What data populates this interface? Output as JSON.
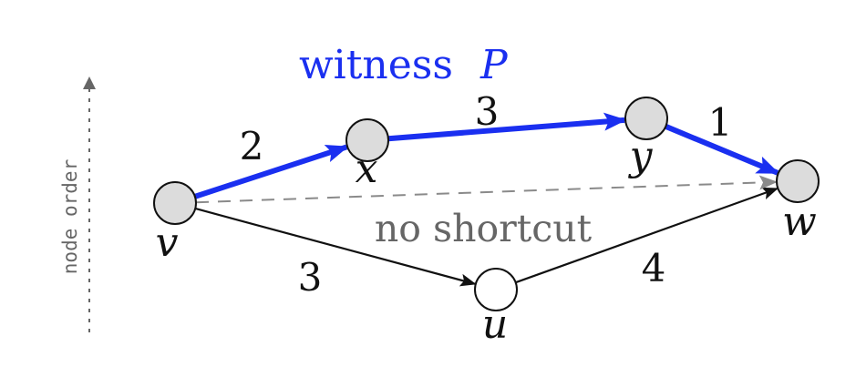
{
  "title": {
    "prefix": "witness",
    "symbol": "P"
  },
  "axis": {
    "label": "node order"
  },
  "annotation": {
    "no_shortcut": "no shortcut"
  },
  "nodes": [
    {
      "id": "v",
      "label": "v",
      "fill": "#dcdcdc"
    },
    {
      "id": "x",
      "label": "x",
      "fill": "#dcdcdc"
    },
    {
      "id": "y",
      "label": "y",
      "fill": "#dcdcdc"
    },
    {
      "id": "w",
      "label": "w",
      "fill": "#dcdcdc"
    },
    {
      "id": "u",
      "label": "u",
      "fill": "#ffffff"
    }
  ],
  "edges": [
    {
      "from": "v",
      "to": "x",
      "weight": "2",
      "style": "witness"
    },
    {
      "from": "x",
      "to": "y",
      "weight": "3",
      "style": "witness"
    },
    {
      "from": "y",
      "to": "w",
      "weight": "1",
      "style": "witness"
    },
    {
      "from": "v",
      "to": "u",
      "weight": "3",
      "style": "plain"
    },
    {
      "from": "u",
      "to": "w",
      "weight": "4",
      "style": "plain"
    },
    {
      "from": "v",
      "to": "w",
      "weight": "",
      "style": "dashed"
    }
  ],
  "colors": {
    "witness": "#1a2ff0",
    "plain": "#111111",
    "dashed": "#8a8a8a",
    "annotation": "#666666",
    "axis": "#666666"
  }
}
